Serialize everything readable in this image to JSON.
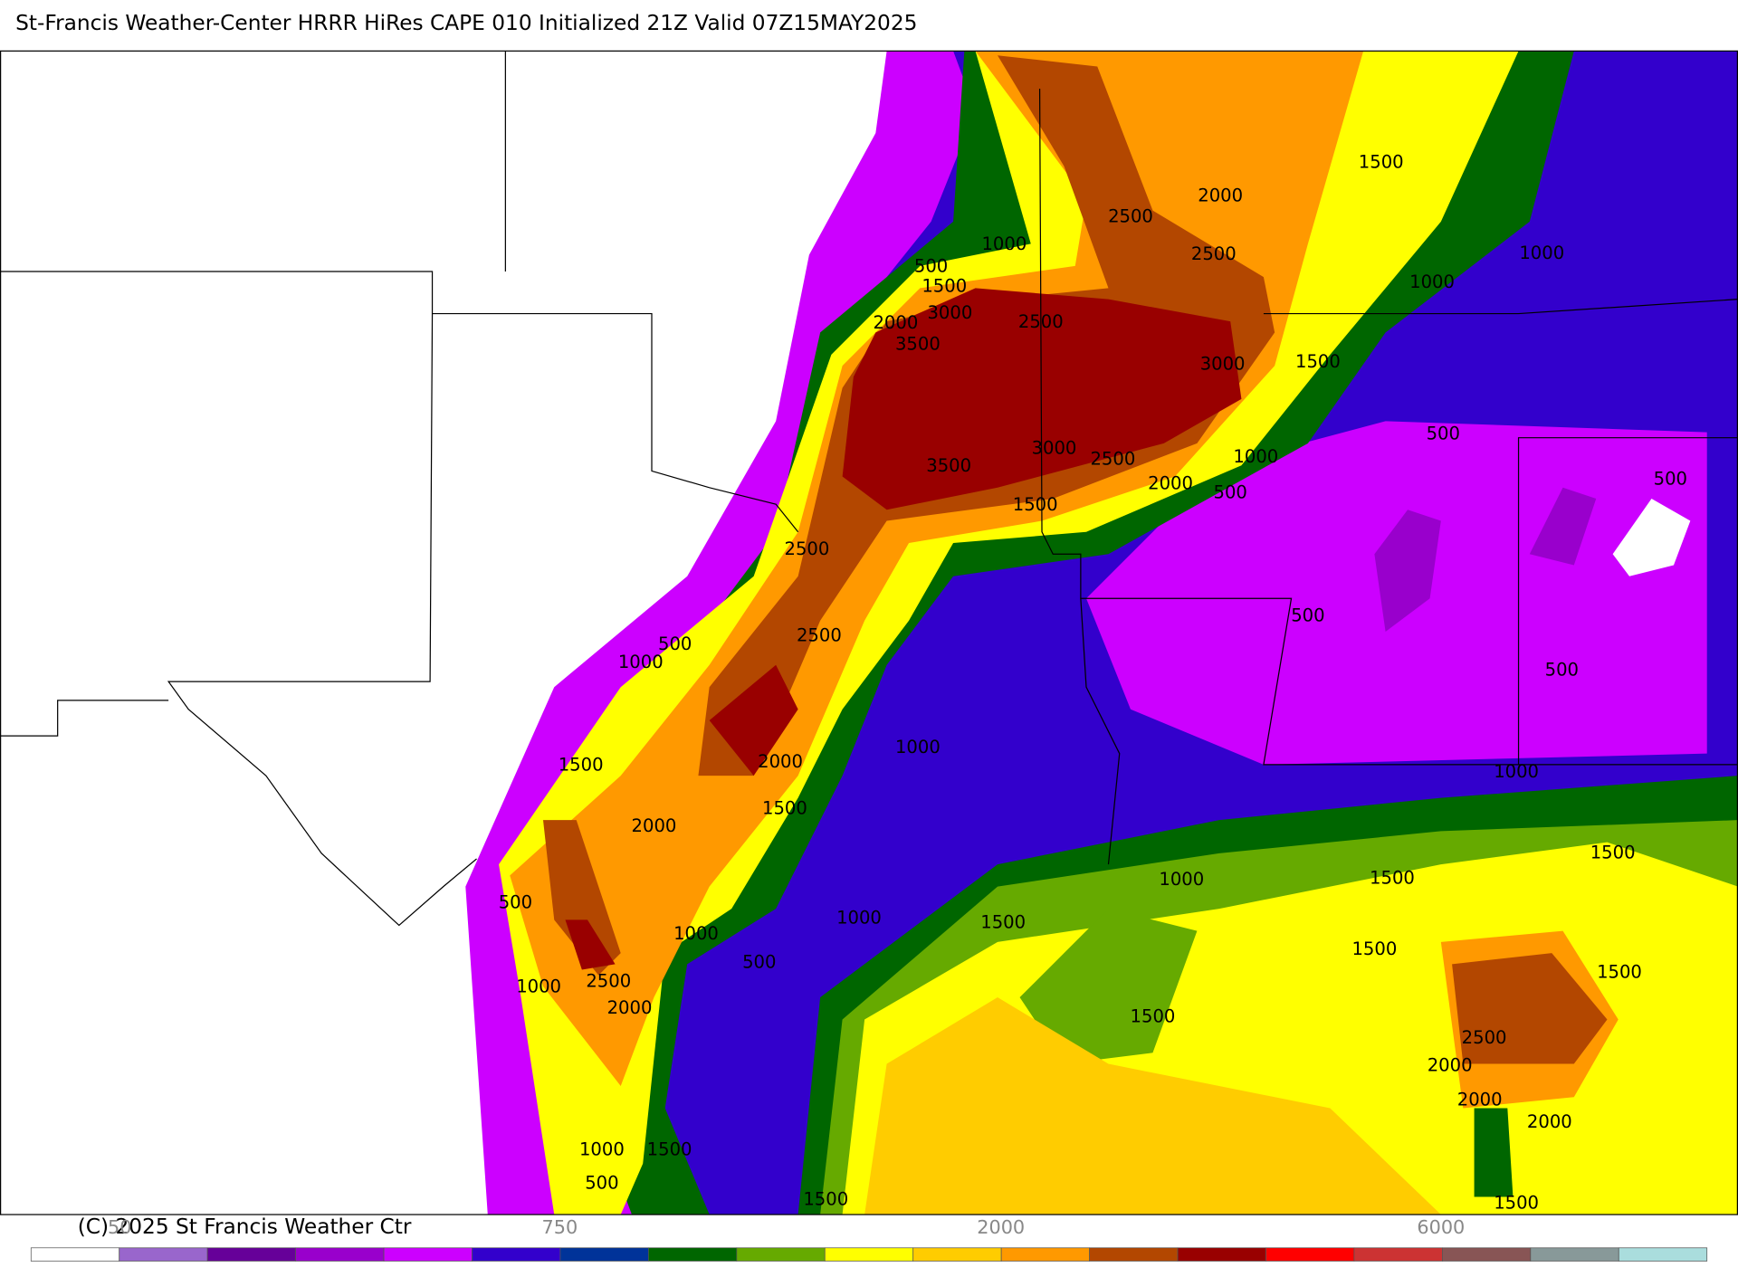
{
  "header": {
    "title": "St-Francis Weather-Center HRRR HiRes CAPE  010 Initialized  21Z Valid 07Z15MAY2025"
  },
  "map": {
    "contour_labels": [
      "1500",
      "2000",
      "2500",
      "2500",
      "1000",
      "1000",
      "500",
      "1500",
      "1000",
      "3000",
      "2500",
      "2000",
      "3500",
      "1500",
      "3000",
      "500",
      "3000",
      "2500",
      "1000",
      "3500",
      "2000",
      "500",
      "500",
      "1500",
      "2500",
      "500",
      "2500",
      "500",
      "1000",
      "500",
      "1000",
      "2000",
      "1500",
      "1000",
      "1500",
      "2000",
      "1500",
      "1500",
      "1000",
      "500",
      "1000",
      "1500",
      "1000",
      "1500",
      "500",
      "1500",
      "2500",
      "1000",
      "2000",
      "1500",
      "2500",
      "2000",
      "2000",
      "2000",
      "1000",
      "1500",
      "500",
      "1500",
      "1500"
    ]
  },
  "colorbar": {
    "colors": [
      "#ffffff",
      "#9966cc",
      "#660099",
      "#9900cc",
      "#cc00ff",
      "#3300cc",
      "#003399",
      "#006600",
      "#66aa00",
      "#ffff00",
      "#ffcc00",
      "#ff9900",
      "#b34700",
      "#990000",
      "#ff0000",
      "#cc3333",
      "#885555",
      "#889999",
      "#aadddd"
    ],
    "labels": [
      "50",
      "750",
      "2000",
      "6000"
    ]
  },
  "footer": {
    "copyright": "(C) 2025 St Francis Weather Ctr"
  }
}
